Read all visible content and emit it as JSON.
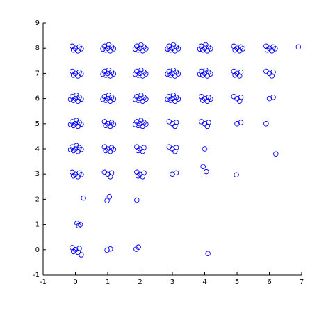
{
  "chart_data": {
    "type": "scatter",
    "color": "#0000ff",
    "xlim": [
      -1,
      7
    ],
    "ylim": [
      -1,
      9
    ],
    "xticks": [
      -1,
      0,
      1,
      2,
      3,
      4,
      5,
      6,
      7
    ],
    "yticks": [
      -1,
      0,
      1,
      2,
      3,
      4,
      5,
      6,
      7,
      8,
      9
    ],
    "x": [
      0,
      0.12,
      -0.1,
      0.08,
      -0.06,
      0.18,
      1,
      1.12,
      0.9,
      1.08,
      0.94,
      1.18,
      0.85,
      1.03,
      2,
      2.12,
      1.9,
      2.08,
      1.94,
      2.18,
      1.85,
      2.03,
      3,
      3.12,
      2.9,
      3.08,
      2.94,
      3.18,
      2.85,
      3.03,
      4,
      4.12,
      3.9,
      4.08,
      3.94,
      4.18,
      3.85,
      4.03,
      5,
      5.12,
      4.9,
      5.08,
      4.94,
      5.18,
      6,
      6.12,
      5.9,
      6.08,
      5.94,
      6.18,
      6.9,
      0,
      0.12,
      -0.1,
      0.08,
      -0.06,
      0.18,
      1,
      1.12,
      0.9,
      1.08,
      0.94,
      1.18,
      0.85,
      1.03,
      2,
      2.12,
      1.9,
      2.08,
      1.94,
      2.18,
      1.85,
      2.03,
      3,
      3.12,
      2.9,
      3.08,
      2.94,
      3.18,
      2.85,
      3.03,
      4,
      4.12,
      3.9,
      4.08,
      3.94,
      4.18,
      3.85,
      4.03,
      5,
      5.12,
      4.9,
      5.08,
      4.94,
      6,
      6.12,
      5.9,
      6.08,
      0,
      0.12,
      -0.1,
      0.08,
      -0.06,
      0.18,
      -0.15,
      0.03,
      1,
      1.12,
      0.9,
      1.08,
      0.94,
      1.18,
      0.85,
      1.03,
      2,
      2.12,
      1.9,
      2.08,
      1.94,
      2.18,
      1.85,
      2.03,
      3,
      3.12,
      2.9,
      3.08,
      2.94,
      3.18,
      2.85,
      3.03,
      4,
      4.12,
      3.9,
      4.08,
      3.94,
      4.18,
      5,
      5.12,
      4.9,
      5.08,
      6,
      6.12,
      0,
      0.12,
      -0.1,
      0.08,
      -0.06,
      0.18,
      -0.15,
      0.03,
      1,
      1.12,
      0.9,
      1.08,
      0.94,
      1.18,
      2,
      2.12,
      1.9,
      2.08,
      1.94,
      2.18,
      1.85,
      2.03,
      3,
      3.12,
      2.9,
      3.08,
      4,
      4.12,
      3.9,
      4.08,
      5,
      5.12,
      5.9,
      0,
      0.12,
      -0.1,
      0.08,
      -0.06,
      0.18,
      -0.15,
      0.03,
      1,
      1.12,
      0.9,
      1.08,
      0.94,
      1.18,
      2,
      2.12,
      1.9,
      2.08,
      1.94,
      3,
      3.12,
      2.9,
      3.08,
      4,
      6.2,
      0,
      0.12,
      -0.1,
      0.08,
      -0.06,
      0.18,
      1,
      1.12,
      0.9,
      1.08,
      2,
      2.12,
      1.9,
      2.08,
      1.94,
      3,
      3.12,
      3.95,
      4.05,
      4.98,
      0.25,
      0.98,
      1.05,
      1.9,
      0.05,
      0.15,
      0.1,
      0,
      0.12,
      -0.1,
      0.08,
      -0.06,
      0.18,
      0.98,
      1.08,
      1.88,
      1.95,
      4.1
    ],
    "y": [
      8,
      8.05,
      8.08,
      7.9,
      7.93,
      7.98,
      8,
      8.05,
      8.08,
      7.9,
      7.93,
      7.98,
      7.97,
      8.13,
      8,
      8.05,
      8.08,
      7.9,
      7.93,
      7.98,
      7.97,
      8.13,
      8,
      8.05,
      8.08,
      7.9,
      7.93,
      7.98,
      7.97,
      8.13,
      8,
      8.05,
      8.08,
      7.9,
      7.93,
      7.98,
      7.97,
      8.13,
      8,
      8.05,
      8.08,
      7.9,
      7.93,
      7.98,
      8,
      8.05,
      8.08,
      7.9,
      7.93,
      7.98,
      8.05,
      7,
      7.05,
      7.08,
      6.9,
      6.93,
      6.98,
      7,
      7.05,
      7.08,
      6.9,
      6.93,
      6.98,
      6.97,
      7.13,
      7,
      7.05,
      7.08,
      6.9,
      6.93,
      6.98,
      6.97,
      7.13,
      7,
      7.05,
      7.08,
      6.9,
      6.93,
      6.98,
      6.97,
      7.13,
      7,
      7.05,
      7.08,
      6.9,
      6.93,
      6.98,
      6.97,
      7.13,
      7,
      7.05,
      7.08,
      6.9,
      6.93,
      7,
      7.05,
      7.08,
      6.9,
      6,
      6.05,
      6.08,
      5.9,
      5.93,
      5.98,
      5.97,
      6.13,
      6,
      6.05,
      6.08,
      5.9,
      5.93,
      5.98,
      5.97,
      6.13,
      6,
      6.05,
      6.08,
      5.9,
      5.93,
      5.98,
      5.97,
      6.13,
      6,
      6.05,
      6.08,
      5.9,
      5.93,
      5.98,
      5.97,
      6.13,
      6,
      6.05,
      6.08,
      5.9,
      5.93,
      5.98,
      6,
      6.05,
      6.08,
      5.9,
      6,
      6.05,
      5,
      5.05,
      5.08,
      4.9,
      4.93,
      4.98,
      4.97,
      5.13,
      5,
      5.05,
      5.08,
      4.9,
      4.93,
      4.98,
      5,
      5.05,
      5.08,
      4.9,
      4.93,
      4.98,
      4.97,
      5.13,
      5,
      5.05,
      5.08,
      4.9,
      5,
      5.05,
      5.08,
      4.9,
      5,
      5.05,
      5,
      4,
      4.05,
      4.08,
      3.9,
      3.93,
      3.98,
      3.97,
      4.13,
      4,
      4.05,
      4.08,
      3.9,
      3.93,
      3.98,
      4,
      4.05,
      4.08,
      3.9,
      3.93,
      4,
      4.05,
      4.08,
      3.9,
      4,
      3.8,
      3,
      3.05,
      3.08,
      2.9,
      2.93,
      2.98,
      3,
      3.05,
      3.08,
      2.9,
      3,
      3.05,
      3.08,
      2.9,
      2.93,
      3,
      3.05,
      3.3,
      3.1,
      2.97,
      2.05,
      1.95,
      2.1,
      1.97,
      1.05,
      1.0,
      0.95,
      0,
      0.05,
      0.08,
      -0.1,
      -0.07,
      -0.2,
      -0.02,
      0.03,
      0.02,
      0.1,
      -0.15
    ]
  }
}
